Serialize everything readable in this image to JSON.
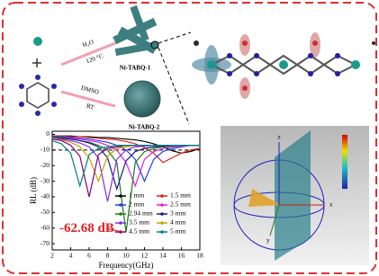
{
  "scheme": {
    "reagent_1": "H₂O",
    "condition_1": "120 °C",
    "product_1": "Ni-TABQ-1",
    "reagent_2": "DMSO",
    "condition_2": "RT",
    "product_2": "Ni-TABQ-2"
  },
  "chart_data": {
    "type": "line",
    "xlabel": "Frequency(GHz)",
    "ylabel": "RL (dB)",
    "annotation": "-62.68 dB",
    "x": [
      2,
      3,
      4,
      5,
      6,
      7,
      8,
      9,
      10,
      11,
      12,
      13,
      14,
      15,
      16,
      17,
      18
    ],
    "xlim": [
      2,
      18
    ],
    "ylim": [
      -74,
      2
    ],
    "xticks": [
      2,
      4,
      6,
      8,
      10,
      12,
      14,
      16,
      18
    ],
    "yticks": [
      0,
      -10,
      -20,
      -30,
      -40,
      -50,
      -60,
      -70
    ],
    "threshold": -10,
    "grid": false,
    "legend": "lower center",
    "series": [
      {
        "name": "1 mm",
        "color": "#000000",
        "values": [
          -1,
          -1,
          -1,
          -1.5,
          -1.5,
          -2,
          -2,
          -2.5,
          -3,
          -3.5,
          -4.5,
          -6,
          -8,
          -10.5,
          -12,
          -11,
          -9
        ]
      },
      {
        "name": "1.5 mm",
        "color": "#e02020",
        "values": [
          -1,
          -1,
          -1.5,
          -1.5,
          -2,
          -2.5,
          -3,
          -3.5,
          -4.5,
          -6,
          -8.5,
          -12,
          -18,
          -15,
          -12,
          -10,
          -9
        ]
      },
      {
        "name": "2 mm",
        "color": "#2040e0",
        "values": [
          -1,
          -1.5,
          -2,
          -2.5,
          -3,
          -4,
          -5,
          -7,
          -10,
          -16,
          -30,
          -16,
          -11,
          -9,
          -8,
          -7,
          -7
        ]
      },
      {
        "name": "2.5 mm",
        "color": "#e020e0",
        "values": [
          -1.5,
          -2,
          -2.5,
          -3,
          -4,
          -5,
          -7,
          -10,
          -18,
          -33,
          -16,
          -11,
          -9,
          -8,
          -7.5,
          -7,
          -7
        ]
      },
      {
        "name": "2.94 mm",
        "color": "#1a7a1a",
        "values": [
          -1.5,
          -2,
          -3,
          -4,
          -5,
          -7,
          -10,
          -18,
          -62.68,
          -18,
          -11,
          -9,
          -8,
          -7.5,
          -7,
          -7,
          -7
        ]
      },
      {
        "name": "3 mm",
        "color": "#1a1a80",
        "values": [
          -2,
          -2.5,
          -3,
          -4,
          -5.5,
          -8,
          -15,
          -35,
          -17,
          -11,
          -9,
          -8,
          -7.5,
          -7,
          -7,
          -7,
          -7
        ]
      },
      {
        "name": "3.5 mm",
        "color": "#8a2be2",
        "values": [
          -2,
          -3,
          -4,
          -5.5,
          -8,
          -15,
          -43,
          -16,
          -10,
          -8,
          -7.5,
          -7,
          -7,
          -7,
          -7,
          -7,
          -7
        ]
      },
      {
        "name": "4 mm",
        "color": "#c8a000",
        "values": [
          -2.5,
          -3.5,
          -5,
          -8,
          -15,
          -30,
          -14,
          -9,
          -8,
          -7,
          -7,
          -7,
          -7,
          -7,
          -7,
          -7,
          -7
        ]
      },
      {
        "name": "4.5 mm",
        "color": "#800080",
        "values": [
          -3,
          -4,
          -7,
          -14,
          -40,
          -13,
          -9,
          -8,
          -7,
          -7,
          -7,
          -7,
          -7,
          -7,
          -7,
          -7,
          -7
        ]
      },
      {
        "name": "5 mm",
        "color": "#008080",
        "values": [
          -4,
          -6,
          -12,
          -33,
          -13,
          -9,
          -8,
          -7,
          -7,
          -7,
          -7,
          -7,
          -7,
          -7,
          -7,
          -7,
          -7
        ]
      }
    ]
  },
  "rcs_plot": {
    "axes": [
      "z",
      "y",
      "x"
    ]
  }
}
